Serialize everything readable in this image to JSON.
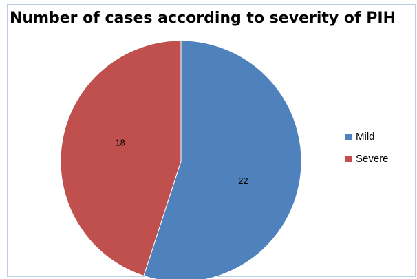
{
  "chart_data": {
    "type": "pie",
    "title": "Number of cases according to severity of PIH",
    "categories": [
      "Mild",
      "Severe"
    ],
    "values": [
      22,
      18
    ],
    "data_labels": [
      "22",
      "18"
    ],
    "colors": [
      "#4f81bd",
      "#c0504d"
    ],
    "legend_position": "right",
    "start_angle": "12 o'clock, clockwise"
  }
}
